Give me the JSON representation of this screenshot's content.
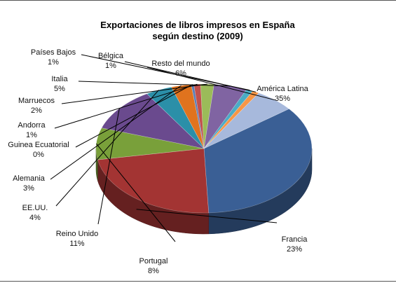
{
  "chart_data": {
    "type": "pie",
    "title_lines": [
      "Exportaciones de libros impresos en España",
      "según destino (2009)"
    ],
    "slices": [
      {
        "name": "América Latina",
        "pct_label": "35%",
        "value": 35,
        "color": "#3a5f95",
        "label_color": "#e00000"
      },
      {
        "name": "Francia",
        "pct_label": "23%",
        "value": 23,
        "color": "#a33433",
        "label_color": "#111111"
      },
      {
        "name": "Portugal",
        "pct_label": "8%",
        "value": 8,
        "color": "#79a03a",
        "label_color": "#111111"
      },
      {
        "name": "Reino Unido",
        "pct_label": "11%",
        "value": 11,
        "color": "#6a4a8e",
        "label_color": "#111111"
      },
      {
        "name": "EE.UU.",
        "pct_label": "4%",
        "value": 4,
        "color": "#2b8fa8",
        "label_color": "#111111"
      },
      {
        "name": "Alemania",
        "pct_label": "3%",
        "value": 3,
        "color": "#e0731e",
        "label_color": "#111111"
      },
      {
        "name": "Guinea Ecuatorial",
        "pct_label": "0%",
        "value": 0.4,
        "color": "#5b7fb8",
        "label_color": "#111111"
      },
      {
        "name": "Andorra",
        "pct_label": "1%",
        "value": 1,
        "color": "#c0504d",
        "label_color": "#111111"
      },
      {
        "name": "Marruecos",
        "pct_label": "2%",
        "value": 2,
        "color": "#9bbb59",
        "label_color": "#111111"
      },
      {
        "name": "Italia",
        "pct_label": "5%",
        "value": 5,
        "color": "#8064a2",
        "label_color": "#111111"
      },
      {
        "name": "Países Bajos",
        "pct_label": "1%",
        "value": 1,
        "color": "#4bacc6",
        "label_color": "#111111"
      },
      {
        "name": "Bélgica",
        "pct_label": "1%",
        "value": 1,
        "color": "#f79646",
        "label_color": "#111111"
      },
      {
        "name": "Resto del mundo",
        "pct_label": "6%",
        "value": 6,
        "color": "#a7b9dc",
        "label_color": "#111111"
      }
    ]
  }
}
